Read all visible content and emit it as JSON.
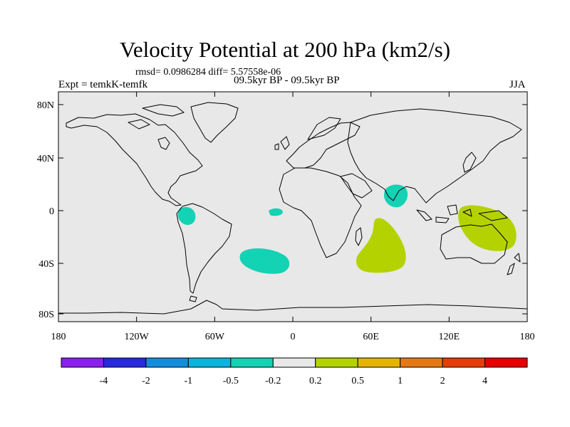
{
  "header": {
    "title": "Velocity Potential at 200 hPa (km2/s)",
    "stats": "rmsd= 0.0986284 diff= 5.57558e-06",
    "experiment": "Expt = temkK-temfk",
    "period": "09.5kyr BP - 09.5kyr BP",
    "season": "JJA"
  },
  "map": {
    "background_color": "#e8e8e8",
    "coastline_color": "#000000",
    "lat_ticks": [
      "80N",
      "40N",
      "0",
      "40S",
      "80S"
    ],
    "lon_ticks": [
      "180",
      "120W",
      "60W",
      "0",
      "60E",
      "120E",
      "180"
    ],
    "anomaly_regions": [
      {
        "name": "peru-coast",
        "category": "-0.5 to -0.2",
        "color": "#14d2b4"
      },
      {
        "name": "equatorial-atlantic",
        "category": "-0.5 to -0.2",
        "color": "#14d2b4"
      },
      {
        "name": "south-atlantic",
        "category": "-0.5 to -0.2",
        "color": "#14d2b4"
      },
      {
        "name": "india",
        "category": "-0.5 to -0.2",
        "color": "#14d2b4"
      },
      {
        "name": "south-indian-ocean",
        "category": "0.2 to 0.5",
        "color": "#b4d200"
      },
      {
        "name": "australia-maritime",
        "category": "0.2 to 0.5",
        "color": "#b4d200"
      }
    ]
  },
  "colorbar": {
    "colors": [
      "#8c1eee",
      "#2828dc",
      "#148cdc",
      "#0ab4dc",
      "#14d2b4",
      "#e8e8e8",
      "#b4d200",
      "#e6b400",
      "#e67814",
      "#e63c0a",
      "#e60000"
    ],
    "labels": [
      "-4",
      "-2",
      "-1",
      "-0.5",
      "-0.2",
      "0.2",
      "0.5",
      "1",
      "2",
      "4"
    ]
  }
}
